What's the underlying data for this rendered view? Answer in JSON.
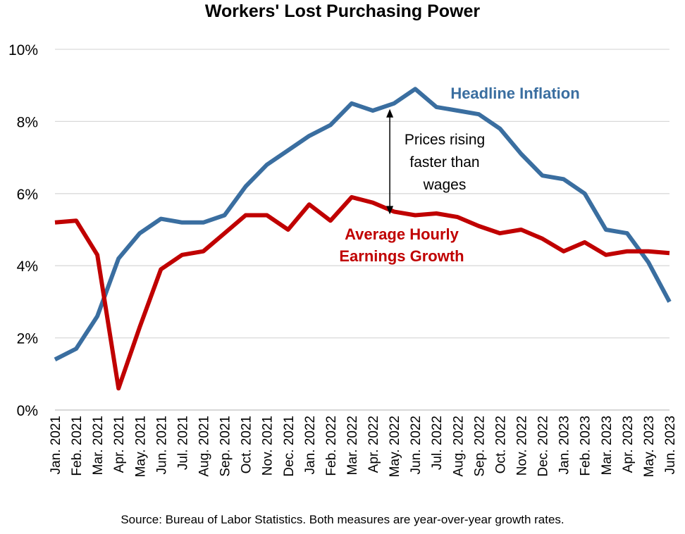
{
  "chart_data": {
    "type": "line",
    "title": "Workers' Lost Purchasing Power",
    "source": "Source: Bureau of Labor Statistics. Both measures are year-over-year growth rates.",
    "ylim": [
      0,
      10
    ],
    "yticks": [
      0,
      2,
      4,
      6,
      8,
      10
    ],
    "ytick_labels": [
      "0%",
      "2%",
      "4%",
      "6%",
      "8%",
      "10%"
    ],
    "grid": true,
    "categories": [
      "Jan. 2021",
      "Feb. 2021",
      "Mar. 2021",
      "Apr. 2021",
      "May. 2021",
      "Jun. 2021",
      "Jul. 2021",
      "Aug. 2021",
      "Sep. 2021",
      "Oct. 2021",
      "Nov. 2021",
      "Dec. 2021",
      "Jan. 2022",
      "Feb. 2022",
      "Mar. 2022",
      "Apr. 2022",
      "May. 2022",
      "Jun. 2022",
      "Jul. 2022",
      "Aug. 2022",
      "Sep. 2022",
      "Oct. 2022",
      "Nov. 2022",
      "Dec. 2022",
      "Jan. 2023",
      "Feb. 2023",
      "Mar. 2023",
      "Apr. 2023",
      "May. 2023",
      "Jun. 2023"
    ],
    "series": [
      {
        "name": "Headline Inflation",
        "color": "#3a6ea0",
        "values": [
          1.4,
          1.7,
          2.6,
          4.2,
          4.9,
          5.3,
          5.2,
          5.2,
          5.4,
          6.2,
          6.8,
          7.2,
          7.6,
          7.9,
          8.5,
          8.3,
          8.5,
          8.9,
          8.4,
          8.3,
          8.2,
          7.8,
          7.1,
          6.5,
          6.4,
          6.0,
          5.0,
          4.9,
          4.1,
          3.0
        ]
      },
      {
        "name": "Average Hourly Earnings Growth",
        "label_lines": [
          "Average Hourly",
          "Earnings Growth"
        ],
        "color": "#c00000",
        "values": [
          5.2,
          5.25,
          4.3,
          0.6,
          2.3,
          3.9,
          4.3,
          4.4,
          4.9,
          5.4,
          5.4,
          5.0,
          5.7,
          5.25,
          5.9,
          5.75,
          5.5,
          5.4,
          5.45,
          5.35,
          5.1,
          4.9,
          5.0,
          4.75,
          4.4,
          4.65,
          4.3,
          4.4,
          4.4,
          4.35
        ]
      }
    ],
    "annotation": {
      "lines": [
        "Prices rising",
        "faster than",
        "wages"
      ],
      "category": "May. 2022",
      "from": 8.5,
      "to": 5.5
    }
  }
}
